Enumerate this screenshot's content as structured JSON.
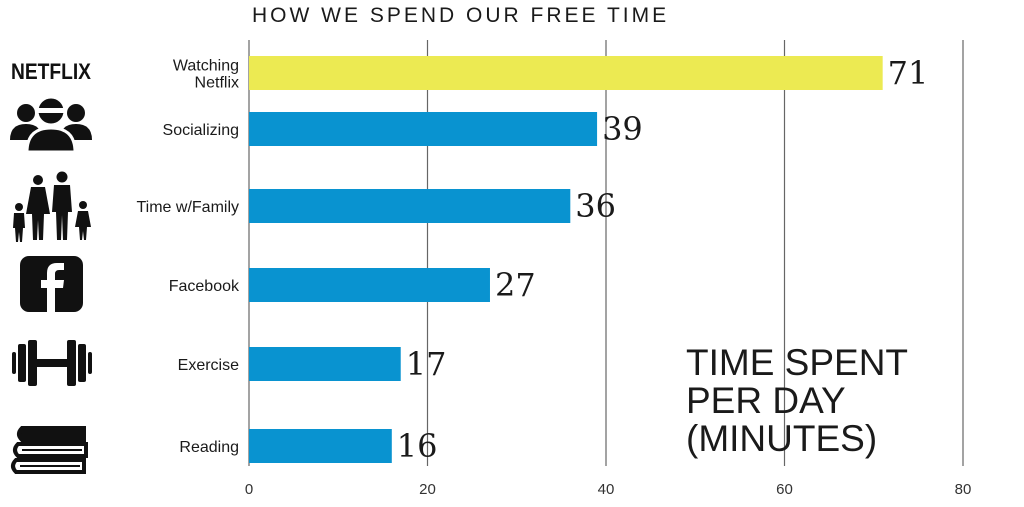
{
  "chart_data": {
    "type": "bar",
    "orientation": "horizontal",
    "title": "HOW WE SPEND OUR FREE TIME",
    "annotation": "TIME SPENT\nPER DAY\n(MINUTES)",
    "categories": [
      "Watching\nNetflix",
      "Socializing",
      "Time w/Family",
      "Facebook",
      "Exercise",
      "Reading"
    ],
    "values": [
      71,
      39,
      36,
      27,
      17,
      16
    ],
    "xlim": [
      0,
      80
    ],
    "xticks": [
      0,
      20,
      40,
      60,
      80
    ],
    "grid": true,
    "colors": {
      "highlight": "#ecea52",
      "bar": "#0993d0",
      "grid": "#666666",
      "text": "#1a1a1a"
    },
    "highlight_index": 0,
    "icons": [
      "netflix-logo",
      "people-group-icon",
      "family-icon",
      "facebook-icon",
      "dumbbell-icon",
      "books-icon"
    ]
  },
  "icons": {
    "netflix_text": "NETFLIX"
  }
}
